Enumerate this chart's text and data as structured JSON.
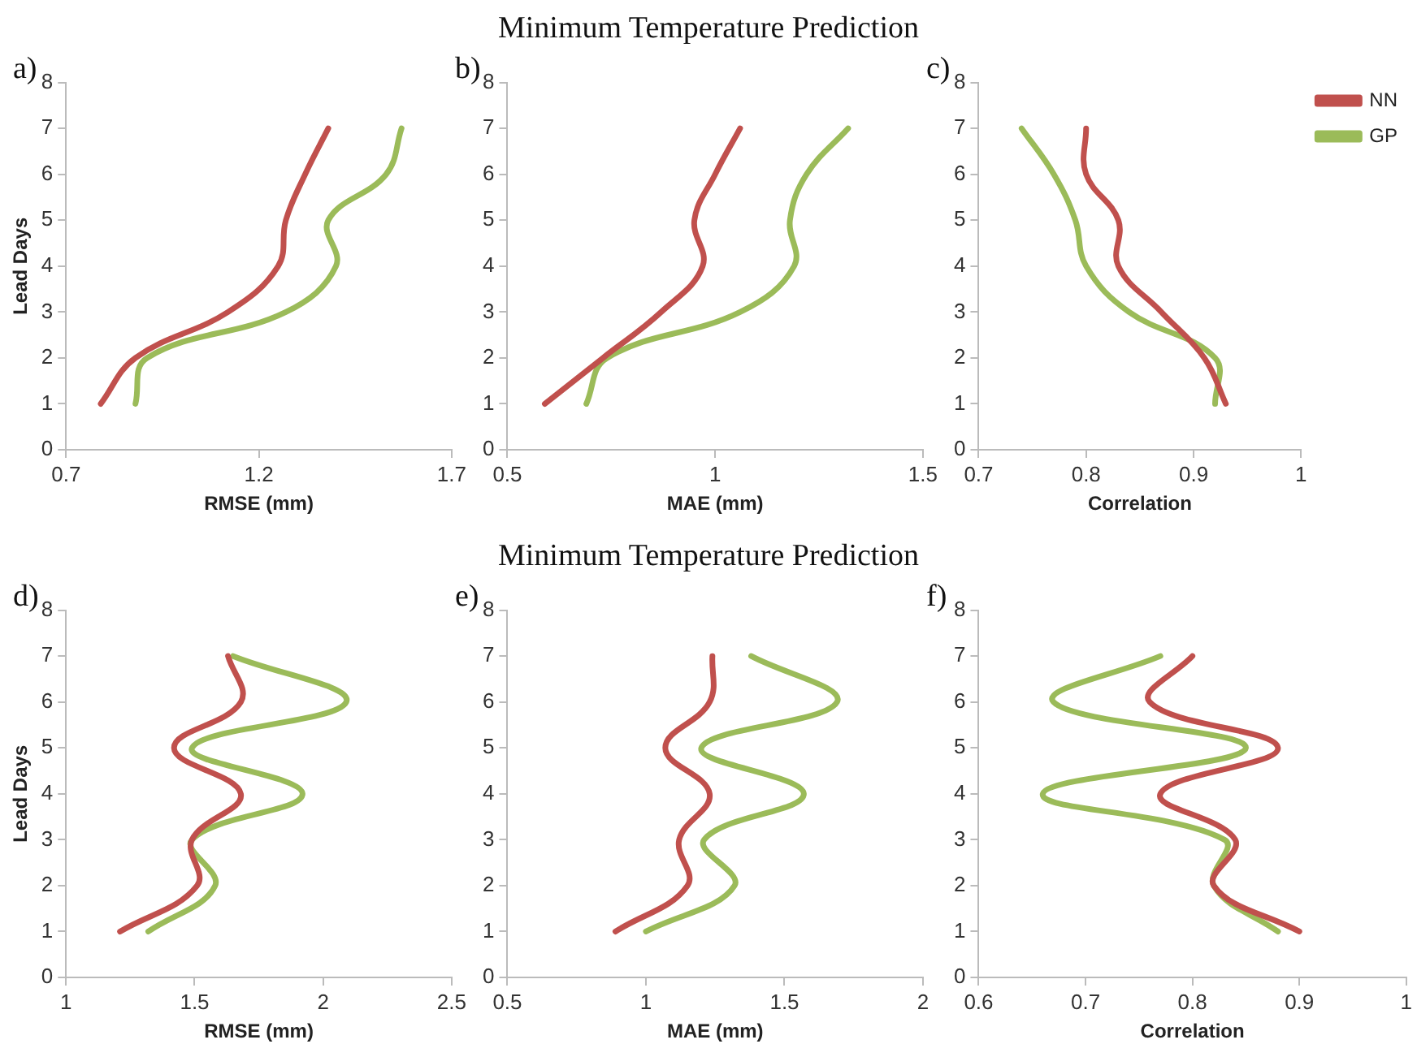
{
  "chart_data": [
    {
      "type": "line",
      "annotations": [
        "a)"
      ],
      "xlabel": "RMSE (mm)",
      "ylabel": "Lead Days",
      "xlim": [
        0.7,
        1.7
      ],
      "xticks": [
        0.7,
        1.2,
        1.7
      ],
      "ylim": [
        0,
        8
      ],
      "yticks": [
        0,
        1,
        2,
        3,
        4,
        5,
        6,
        7,
        8
      ],
      "marker": "none",
      "legend": false,
      "series": [
        {
          "color": "#c0504d",
          "x": [
            0.79,
            0.88,
            1.12,
            1.25,
            1.27,
            1.32,
            1.38
          ],
          "values": [
            1,
            2,
            3,
            4,
            5,
            6,
            7
          ]
        },
        {
          "color": "#9bbb59",
          "x": [
            0.88,
            0.91,
            1.27,
            1.4,
            1.38,
            1.53,
            1.57
          ],
          "values": [
            1,
            2,
            3,
            4,
            5,
            6,
            7
          ]
        }
      ]
    },
    {
      "type": "line",
      "title": "Minimum Temperature Prediction",
      "annotations": [
        "b)"
      ],
      "xlabel": "MAE (mm)",
      "xlim": [
        0.5,
        1.5
      ],
      "xticks": [
        0.5,
        1,
        1.5
      ],
      "ylim": [
        0,
        8
      ],
      "yticks": [
        0,
        1,
        2,
        3,
        4,
        5,
        6,
        7,
        8
      ],
      "marker": "none",
      "legend": false,
      "series": [
        {
          "color": "#c0504d",
          "x": [
            0.59,
            0.73,
            0.87,
            0.97,
            0.95,
            1.0,
            1.06
          ],
          "values": [
            1,
            2,
            3,
            4,
            5,
            6,
            7
          ]
        },
        {
          "color": "#9bbb59",
          "x": [
            0.69,
            0.74,
            1.06,
            1.19,
            1.18,
            1.22,
            1.32
          ],
          "values": [
            1,
            2,
            3,
            4,
            5,
            6,
            7
          ]
        }
      ]
    },
    {
      "type": "line",
      "annotations": [
        "c)"
      ],
      "xlabel": "Correlation",
      "xlim": [
        0.7,
        1
      ],
      "xticks": [
        0.7,
        0.8,
        0.9,
        1
      ],
      "ylim": [
        0,
        8
      ],
      "yticks": [
        0,
        1,
        2,
        3,
        4,
        5,
        6,
        7,
        8
      ],
      "marker": "none",
      "legend": "top right",
      "series": [
        {
          "name": "NN",
          "color": "#c0504d",
          "x": [
            0.93,
            0.91,
            0.87,
            0.83,
            0.83,
            0.8,
            0.8
          ],
          "values": [
            1,
            2,
            3,
            4,
            5,
            6,
            7
          ]
        },
        {
          "name": "GP",
          "color": "#9bbb59",
          "x": [
            0.92,
            0.92,
            0.84,
            0.8,
            0.79,
            0.77,
            0.74
          ],
          "values": [
            1,
            2,
            3,
            4,
            5,
            6,
            7
          ]
        }
      ]
    },
    {
      "type": "line",
      "annotations": [
        "d)"
      ],
      "xlabel": "RMSE (mm)",
      "ylabel": "Lead Days",
      "xlim": [
        1,
        2.5
      ],
      "xticks": [
        1,
        1.5,
        2,
        2.5
      ],
      "ylim": [
        0,
        8
      ],
      "yticks": [
        0,
        1,
        2,
        3,
        4,
        5,
        6,
        7,
        8
      ],
      "marker": "none",
      "legend": false,
      "series": [
        {
          "color": "#c0504d",
          "x": [
            1.21,
            1.51,
            1.49,
            1.68,
            1.42,
            1.68,
            1.63
          ],
          "values": [
            1,
            2,
            3,
            4,
            5,
            6,
            7
          ]
        },
        {
          "color": "#9bbb59",
          "x": [
            1.32,
            1.58,
            1.49,
            1.92,
            1.49,
            2.09,
            1.65
          ],
          "values": [
            1,
            2,
            3,
            4,
            5,
            6,
            7
          ]
        }
      ]
    },
    {
      "type": "line",
      "title": "Minimum Temperature Prediction",
      "annotations": [
        "e)"
      ],
      "xlabel": "MAE (mm)",
      "xlim": [
        0.5,
        2
      ],
      "xticks": [
        0.5,
        1,
        1.5,
        2
      ],
      "ylim": [
        0,
        8
      ],
      "yticks": [
        0,
        1,
        2,
        3,
        4,
        5,
        6,
        7,
        8
      ],
      "marker": "none",
      "legend": false,
      "series": [
        {
          "color": "#c0504d",
          "x": [
            0.89,
            1.15,
            1.12,
            1.23,
            1.07,
            1.23,
            1.24
          ],
          "values": [
            1,
            2,
            3,
            4,
            5,
            6,
            7
          ]
        },
        {
          "color": "#9bbb59",
          "x": [
            1.0,
            1.32,
            1.21,
            1.57,
            1.2,
            1.69,
            1.38
          ],
          "values": [
            1,
            2,
            3,
            4,
            5,
            6,
            7
          ]
        }
      ]
    },
    {
      "type": "line",
      "annotations": [
        "f)"
      ],
      "xlabel": "Correlation",
      "xlim": [
        0.6,
        1
      ],
      "xticks": [
        0.6,
        0.7,
        0.8,
        0.9,
        1
      ],
      "ylim": [
        0,
        8
      ],
      "yticks": [
        0,
        1,
        2,
        3,
        4,
        5,
        6,
        7,
        8
      ],
      "marker": "none",
      "legend": false,
      "series": [
        {
          "color": "#c0504d",
          "x": [
            0.9,
            0.82,
            0.84,
            0.77,
            0.88,
            0.76,
            0.8
          ],
          "values": [
            1,
            2,
            3,
            4,
            5,
            6,
            7
          ]
        },
        {
          "color": "#9bbb59",
          "x": [
            0.88,
            0.82,
            0.83,
            0.66,
            0.85,
            0.67,
            0.77
          ],
          "values": [
            1,
            2,
            3,
            4,
            5,
            6,
            7
          ]
        }
      ]
    }
  ]
}
